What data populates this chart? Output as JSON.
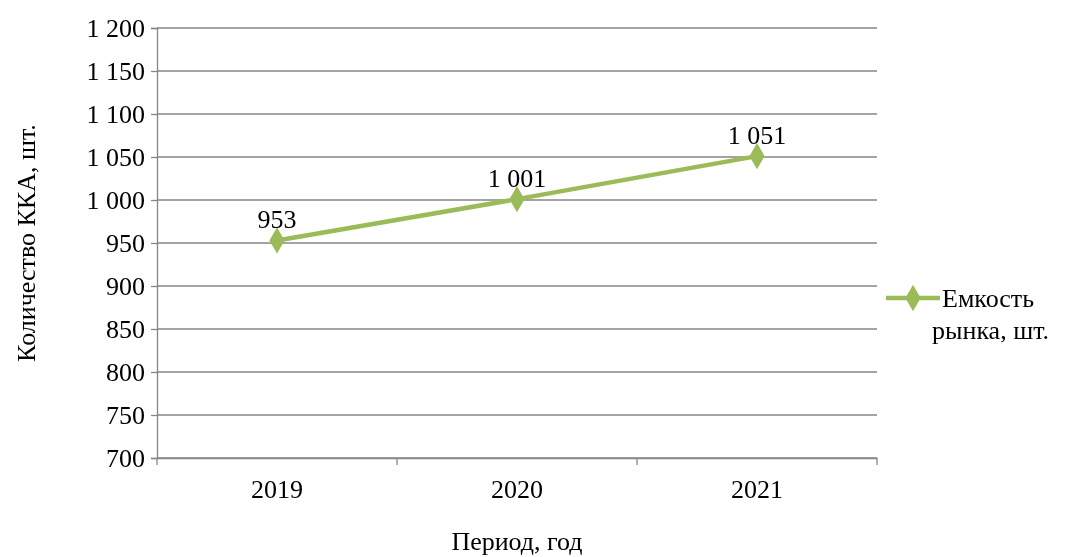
{
  "chart_data": {
    "type": "line",
    "xlabel": "Период, год",
    "ylabel": "Количество ККА, шт.",
    "categories": [
      "2019",
      "2020",
      "2021"
    ],
    "series": [
      {
        "name": "Емкость рынка, шт.",
        "color": "#9bbb59",
        "values": [
          953,
          1001,
          1051
        ],
        "value_labels": [
          "953",
          "1 001",
          "1 051"
        ]
      }
    ],
    "ylim": [
      700,
      1200
    ],
    "yticks": [
      700,
      750,
      800,
      850,
      900,
      950,
      {
        "value": 1000,
        "label": "1 000"
      },
      {
        "value": 1050,
        "label": "1 050"
      },
      {
        "value": 1100,
        "label": "1 100"
      },
      {
        "value": 1150,
        "label": "1 150"
      },
      {
        "value": 1200,
        "label": "1 200"
      }
    ],
    "grid": "y",
    "legend": "right",
    "marker": "diamond",
    "line_style": "solid"
  }
}
